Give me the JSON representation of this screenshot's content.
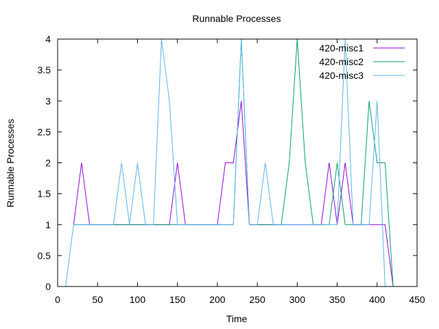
{
  "chart_data": {
    "type": "line",
    "title": "Runnable Processes",
    "xlabel": "Time",
    "ylabel": "Runnable Processes",
    "xlim": [
      0,
      450
    ],
    "ylim": [
      0,
      4
    ],
    "xticks": [
      0,
      50,
      100,
      150,
      200,
      250,
      300,
      350,
      400,
      450
    ],
    "yticks": [
      0,
      0.5,
      1,
      1.5,
      2,
      2.5,
      3,
      3.5,
      4
    ],
    "xtick_labels": [
      "0",
      "50",
      "100",
      "150",
      "200",
      "250",
      "300",
      "350",
      "400",
      "450"
    ],
    "ytick_labels": [
      "0",
      "0.5",
      "1",
      "1.5",
      "2",
      "2.5",
      "3",
      "3.5",
      "4"
    ],
    "grid": false,
    "legend_position": "top-right",
    "series": [
      {
        "name": "420-misc1",
        "color": "#9400d3",
        "x": [
          20,
          30,
          40,
          140,
          150,
          160,
          200,
          210,
          220,
          230,
          240,
          330,
          340,
          350,
          360,
          370,
          400,
          410,
          420
        ],
        "y": [
          1,
          2,
          1,
          1,
          2,
          1,
          1,
          2,
          2,
          3,
          1,
          1,
          2,
          1,
          2,
          1,
          1,
          1,
          0
        ]
      },
      {
        "name": "420-misc2",
        "color": "#009e73",
        "x": [
          20,
          120,
          220,
          230,
          240,
          280,
          290,
          300,
          310,
          320,
          340,
          350,
          360,
          380,
          390,
          400,
          410,
          420
        ],
        "y": [
          1,
          1,
          1,
          4,
          1,
          1,
          2,
          4,
          2,
          1,
          1,
          2,
          1,
          1,
          3,
          2,
          2,
          0
        ]
      },
      {
        "name": "420-misc3",
        "color": "#56b4e9",
        "x": [
          10,
          20,
          70,
          80,
          90,
          100,
          110,
          120,
          130,
          140,
          150,
          220,
          230,
          240,
          250,
          260,
          270,
          350,
          360,
          370,
          380,
          390,
          400,
          410
        ],
        "y": [
          0,
          1,
          1,
          2,
          1,
          2,
          1,
          1,
          4,
          3,
          1,
          1,
          4,
          1,
          1,
          2,
          1,
          1,
          4,
          1,
          1,
          1,
          3,
          0
        ]
      }
    ]
  }
}
